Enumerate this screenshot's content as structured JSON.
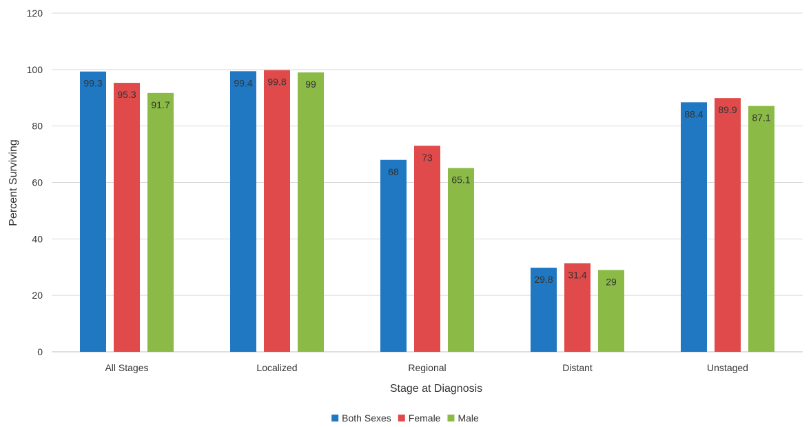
{
  "chart_data": {
    "type": "bar",
    "categories": [
      "All Stages",
      "Localized",
      "Regional",
      "Distant",
      "Unstaged"
    ],
    "series": [
      {
        "name": "Both Sexes",
        "color": "#1f78c1",
        "values": [
          99.3,
          99.4,
          68,
          29.8,
          88.4
        ]
      },
      {
        "name": "Female",
        "color": "#e04a4a",
        "values": [
          95.3,
          99.8,
          73,
          31.4,
          89.9
        ]
      },
      {
        "name": "Male",
        "color": "#8bbb46",
        "values": [
          91.7,
          99,
          65.1,
          29,
          87.1
        ]
      }
    ],
    "data_labels": [
      [
        "99.3",
        "99.4",
        "68",
        "29.8",
        "88.4"
      ],
      [
        "95.3",
        "99.8",
        "73",
        "31.4",
        "89.9"
      ],
      [
        "91.7",
        "99",
        "65.1",
        "29",
        "87.1"
      ]
    ],
    "xlabel": "Stage at Diagnosis",
    "ylabel": "Percent Surviving",
    "ylim": [
      0,
      120
    ],
    "yticks": [
      "0",
      "20",
      "40",
      "60",
      "80",
      "100",
      "120"
    ],
    "grid": true,
    "legend_position": "bottom-center"
  }
}
